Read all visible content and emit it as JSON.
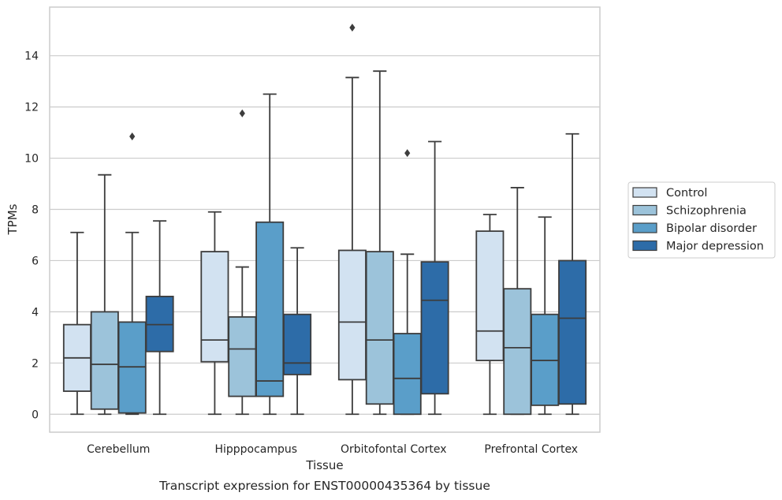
{
  "chart_data": {
    "type": "boxplot",
    "title": "",
    "caption": "Transcript expression for ENST00000435364 by tissue",
    "xlabel": "Tissue",
    "ylabel": "TPMs",
    "ylim": [
      -0.7,
      15.9
    ],
    "yticks": [
      0,
      2,
      4,
      6,
      8,
      10,
      12,
      14
    ],
    "grid": true,
    "legend_position": "right",
    "categories": [
      "Cerebellum",
      "Hipppocampus",
      "Orbitofontal Cortex",
      "Prefrontal Cortex"
    ],
    "series": [
      {
        "name": "Control",
        "color": "#d2e2f1",
        "boxes": [
          {
            "whislo": 0,
            "q1": 0.9,
            "med": 2.2,
            "q3": 3.5,
            "whishi": 7.1,
            "fliers": []
          },
          {
            "whislo": 0,
            "q1": 2.05,
            "med": 2.9,
            "q3": 6.35,
            "whishi": 7.9,
            "fliers": []
          },
          {
            "whislo": 0,
            "q1": 1.35,
            "med": 3.6,
            "q3": 6.4,
            "whishi": 13.15,
            "fliers": [
              15.1
            ]
          },
          {
            "whislo": 0,
            "q1": 2.1,
            "med": 3.25,
            "q3": 7.15,
            "whishi": 7.8,
            "fliers": []
          }
        ]
      },
      {
        "name": "Schizophrenia",
        "color": "#9cc3da",
        "boxes": [
          {
            "whislo": 0,
            "q1": 0.2,
            "med": 1.95,
            "q3": 4.0,
            "whishi": 9.35,
            "fliers": []
          },
          {
            "whislo": 0,
            "q1": 0.7,
            "med": 2.55,
            "q3": 3.8,
            "whishi": 5.75,
            "fliers": [
              11.75
            ]
          },
          {
            "whislo": 0,
            "q1": 0.4,
            "med": 2.9,
            "q3": 6.35,
            "whishi": 13.4,
            "fliers": []
          },
          {
            "whislo": 0,
            "q1": 0,
            "med": 2.6,
            "q3": 4.9,
            "whishi": 8.85,
            "fliers": []
          }
        ]
      },
      {
        "name": "Bipolar disorder",
        "color": "#5a9ec9",
        "boxes": [
          {
            "whislo": 0,
            "q1": 0.05,
            "med": 1.85,
            "q3": 3.6,
            "whishi": 7.1,
            "fliers": [
              10.85
            ]
          },
          {
            "whislo": 0,
            "q1": 0.7,
            "med": 1.3,
            "q3": 7.5,
            "whishi": 12.5,
            "fliers": []
          },
          {
            "whislo": 0,
            "q1": 0,
            "med": 1.4,
            "q3": 3.15,
            "whishi": 6.25,
            "fliers": [
              10.2
            ]
          },
          {
            "whislo": 0,
            "q1": 0.35,
            "med": 2.1,
            "q3": 3.9,
            "whishi": 7.7,
            "fliers": []
          }
        ]
      },
      {
        "name": "Major depression",
        "color": "#2d6ca8",
        "boxes": [
          {
            "whislo": 0,
            "q1": 2.45,
            "med": 3.5,
            "q3": 4.6,
            "whishi": 7.55,
            "fliers": []
          },
          {
            "whislo": 0,
            "q1": 1.55,
            "med": 2.0,
            "q3": 3.9,
            "whishi": 6.5,
            "fliers": []
          },
          {
            "whislo": 0,
            "q1": 0.8,
            "med": 4.45,
            "q3": 5.95,
            "whishi": 10.65,
            "fliers": []
          },
          {
            "whislo": 0,
            "q1": 0.4,
            "med": 3.75,
            "q3": 6.0,
            "whishi": 10.95,
            "fliers": []
          }
        ]
      }
    ]
  }
}
